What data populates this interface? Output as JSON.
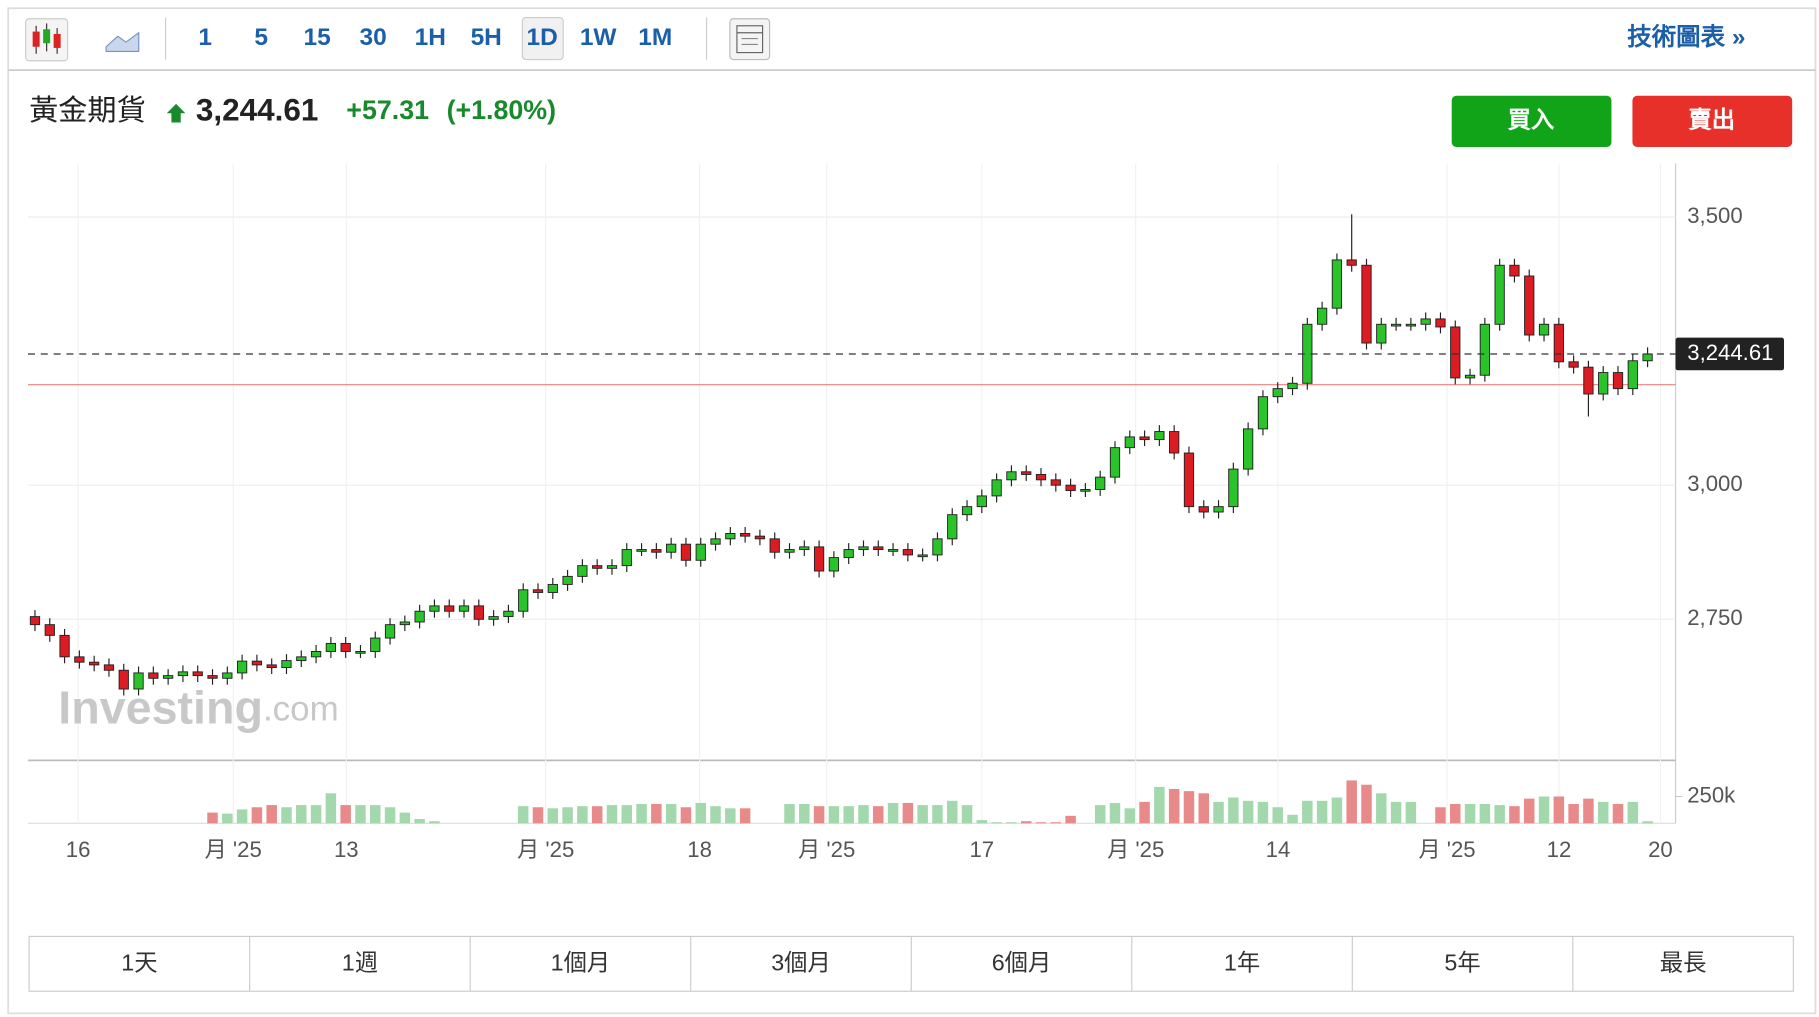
{
  "toolbar": {
    "intervals": [
      "1",
      "5",
      "15",
      "30",
      "1H",
      "5H",
      "1D",
      "1W",
      "1M"
    ],
    "active": "1D",
    "link": "技術圖表 »"
  },
  "header": {
    "name": "黃金期貨",
    "price": "3,244.61",
    "change": "+57.31",
    "change_pct": "(+1.80%)"
  },
  "buttons": {
    "buy": "買入",
    "sell": "賣出"
  },
  "ranges": [
    "1天",
    "1週",
    "1個月",
    "3個月",
    "6個月",
    "1年",
    "5年",
    "最長"
  ],
  "chart_data": {
    "type": "candlestick",
    "open": [
      2755,
      2740,
      2720,
      2680,
      2670,
      2665,
      2655,
      2620,
      2650,
      2640,
      2645,
      2652,
      2645,
      2640,
      2650,
      2672,
      2665,
      2660,
      2673,
      2680,
      2690,
      2705,
      2690,
      2690,
      2715,
      2740,
      2745,
      2765,
      2775,
      2765,
      2775,
      2750,
      2755,
      2765,
      2805,
      2800,
      2815,
      2830,
      2850,
      2845,
      2850,
      2880,
      2880,
      2875,
      2890,
      2860,
      2890,
      2900,
      2910,
      2905,
      2900,
      2875,
      2880,
      2885,
      2840,
      2865,
      2880,
      2885,
      2880,
      2880,
      2870,
      2870,
      2900,
      2945,
      2960,
      2980,
      3010,
      3025,
      3020,
      3010,
      3000,
      2990,
      2992,
      3015,
      3070,
      3090,
      3085,
      3100,
      3060,
      2960,
      2950,
      2960,
      3030,
      3105,
      3165,
      3180,
      3190,
      3300,
      3330,
      3420,
      3410,
      3265,
      3300,
      3300,
      3300,
      3310,
      3295,
      3200,
      3205,
      3300,
      3410,
      3390,
      3280,
      3300,
      3230,
      3220,
      3170,
      3210,
      3180,
      3232
    ],
    "high": [
      2767,
      2752,
      2732,
      2692,
      2682,
      2677,
      2667,
      2662,
      2662,
      2657,
      2664,
      2664,
      2657,
      2662,
      2684,
      2684,
      2677,
      2685,
      2692,
      2702,
      2717,
      2717,
      2702,
      2727,
      2752,
      2757,
      2777,
      2787,
      2787,
      2787,
      2787,
      2767,
      2777,
      2817,
      2817,
      2827,
      2842,
      2862,
      2862,
      2862,
      2892,
      2892,
      2892,
      2902,
      2902,
      2902,
      2912,
      2922,
      2922,
      2917,
      2912,
      2892,
      2897,
      2897,
      2877,
      2892,
      2897,
      2897,
      2892,
      2892,
      2882,
      2912,
      2957,
      2972,
      2992,
      3022,
      3037,
      3037,
      3032,
      3022,
      3012,
      3004,
      3027,
      3082,
      3102,
      3102,
      3112,
      3112,
      3072,
      2972,
      2972,
      3042,
      3117,
      3177,
      3192,
      3202,
      3312,
      3342,
      3432,
      3505,
      3422,
      3312,
      3312,
      3312,
      3322,
      3322,
      3307,
      3217,
      3312,
      3422,
      3422,
      3402,
      3312,
      3312,
      3242,
      3232,
      3222,
      3222,
      3244,
      3257
    ],
    "low": [
      2728,
      2708,
      2668,
      2658,
      2653,
      2643,
      2608,
      2608,
      2628,
      2628,
      2633,
      2633,
      2628,
      2628,
      2638,
      2653,
      2648,
      2648,
      2661,
      2668,
      2678,
      2678,
      2678,
      2678,
      2703,
      2728,
      2733,
      2753,
      2753,
      2753,
      2738,
      2738,
      2743,
      2753,
      2788,
      2788,
      2803,
      2818,
      2833,
      2833,
      2838,
      2868,
      2863,
      2863,
      2848,
      2848,
      2878,
      2888,
      2893,
      2888,
      2863,
      2863,
      2868,
      2828,
      2828,
      2853,
      2868,
      2868,
      2868,
      2858,
      2858,
      2858,
      2888,
      2933,
      2948,
      2968,
      2998,
      3008,
      2998,
      2988,
      2978,
      2978,
      2980,
      3003,
      3058,
      3073,
      3073,
      3048,
      2948,
      2938,
      2938,
      2948,
      3018,
      3093,
      3153,
      3168,
      3178,
      3288,
      3318,
      3398,
      3253,
      3253,
      3288,
      3288,
      3288,
      3283,
      3188,
      3188,
      3193,
      3288,
      3378,
      3268,
      3268,
      3218,
      3208,
      3128,
      3158,
      3168,
      3168,
      3220
    ],
    "close": [
      2740,
      2720,
      2680,
      2670,
      2665,
      2655,
      2620,
      2650,
      2640,
      2645,
      2652,
      2645,
      2640,
      2650,
      2672,
      2665,
      2660,
      2673,
      2680,
      2690,
      2705,
      2690,
      2690,
      2715,
      2740,
      2745,
      2765,
      2775,
      2765,
      2775,
      2750,
      2755,
      2765,
      2805,
      2800,
      2815,
      2830,
      2850,
      2845,
      2850,
      2880,
      2880,
      2875,
      2890,
      2860,
      2890,
      2900,
      2910,
      2905,
      2900,
      2875,
      2880,
      2885,
      2840,
      2865,
      2880,
      2885,
      2880,
      2880,
      2870,
      2870,
      2900,
      2945,
      2960,
      2980,
      3010,
      3025,
      3020,
      3010,
      3000,
      2990,
      2992,
      3015,
      3070,
      3090,
      3085,
      3100,
      3060,
      2960,
      2950,
      2960,
      3030,
      3105,
      3165,
      3180,
      3190,
      3300,
      3330,
      3420,
      3410,
      3265,
      3300,
      3300,
      3300,
      3310,
      3295,
      3200,
      3205,
      3300,
      3410,
      3390,
      3280,
      3300,
      3230,
      3220,
      3170,
      3210,
      3180,
      3232,
      3244.61
    ],
    "volume": [
      null,
      null,
      null,
      null,
      null,
      null,
      null,
      null,
      null,
      null,
      null,
      null,
      100000,
      90000,
      130000,
      150000,
      170000,
      150000,
      170000,
      170000,
      280000,
      170000,
      170000,
      170000,
      150000,
      100000,
      40000,
      20000,
      null,
      null,
      null,
      null,
      null,
      160000,
      150000,
      140000,
      150000,
      160000,
      160000,
      170000,
      170000,
      180000,
      180000,
      180000,
      150000,
      190000,
      160000,
      140000,
      140000,
      null,
      null,
      180000,
      180000,
      160000,
      160000,
      160000,
      170000,
      160000,
      190000,
      190000,
      170000,
      170000,
      210000,
      170000,
      30000,
      10000,
      10000,
      20000,
      10000,
      10000,
      70000,
      null,
      170000,
      190000,
      140000,
      200000,
      340000,
      320000,
      300000,
      280000,
      200000,
      240000,
      210000,
      200000,
      150000,
      80000,
      210000,
      210000,
      240000,
      400000,
      360000,
      280000,
      200000,
      200000,
      null,
      150000,
      180000,
      180000,
      180000,
      170000,
      160000,
      230000,
      250000,
      250000,
      180000,
      230000,
      200000,
      180000,
      200000,
      20000
    ],
    "ylim": [
      2487,
      3600
    ],
    "yticks": [
      {
        "value": 2750,
        "label": "2,750"
      },
      {
        "value": 3000,
        "label": "3,000"
      },
      {
        "value": 3500,
        "label": "3,500"
      }
    ],
    "vlim": [
      0,
      587000
    ],
    "vticks": [
      {
        "value": 250000,
        "label": "250k"
      }
    ],
    "last_price": {
      "value": 3244.61,
      "label": "3,244.61"
    },
    "prev_close": 3187.3,
    "x_labels": [
      "16",
      "月 '25",
      "13",
      "月 '25",
      "18",
      "月 '25",
      "17",
      "月 '25",
      "14",
      "月 '25",
      "12",
      "20"
    ],
    "up_color": "#2ac42a",
    "down_color": "#dc1b22",
    "up_volume_color": "#a3d8ad",
    "down_volume_color": "#e88a8a",
    "watermark": [
      "Investing",
      ".com"
    ]
  }
}
